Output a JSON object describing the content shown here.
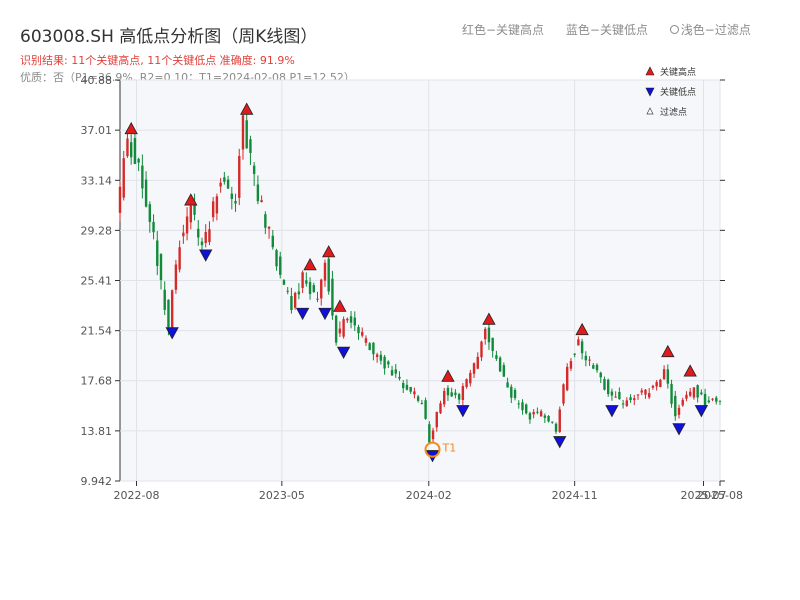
{
  "title": "603008.SH 高低点分析图（周K线图）",
  "result_text": "识别结果: 11个关键高点, 11个关键低点   准确度: 91.9%",
  "quality_text": "优质：否（P1=36.9%, R2=0.10；T1=2024-02-08 P1=12.52）",
  "top_legend": {
    "high": "红色−关键高点",
    "low": "蓝色−关键低点",
    "filtered": "浅色−过滤点"
  },
  "colors": {
    "up": "#d42a2a",
    "down": "#118a3a",
    "high_marker": "#e01b1b",
    "low_marker": "#1010d8",
    "t1_marker": "#f08c1e",
    "plot_bg": "#f5f7fa"
  },
  "chart_data": {
    "type": "candlestick",
    "ylim": [
      9.942,
      40.88
    ],
    "y_ticks": [
      "9.942",
      "13.81",
      "17.68",
      "21.54",
      "25.41",
      "29.28",
      "33.14",
      "37.01",
      "40.88"
    ],
    "x_range": [
      "2022-07-01",
      "2025-08-01"
    ],
    "x_ticks": [
      "2022-08",
      "2023-05",
      "2024-02",
      "2024-11",
      "2025-07",
      "2025-08"
    ],
    "grid": true,
    "legend": {
      "position": "top-right",
      "items": [
        "关键高点",
        "关键低点",
        "过滤点"
      ]
    },
    "price_path": [
      [
        "2022-07-01",
        30.0
      ],
      [
        "2022-07-22",
        36.5
      ],
      [
        "2022-08-19",
        33.0
      ],
      [
        "2022-09-09",
        28.5
      ],
      [
        "2022-10-07",
        22.0
      ],
      [
        "2022-10-28",
        28.5
      ],
      [
        "2022-11-18",
        31.0
      ],
      [
        "2022-12-09",
        28.0
      ],
      [
        "2023-01-13",
        33.0
      ],
      [
        "2023-02-10",
        32.0
      ],
      [
        "2023-02-24",
        37.5
      ],
      [
        "2023-03-17",
        33.0
      ],
      [
        "2023-04-14",
        29.0
      ],
      [
        "2023-05-05",
        25.5
      ],
      [
        "2023-05-26",
        23.5
      ],
      [
        "2023-06-16",
        25.5
      ],
      [
        "2023-07-14",
        24.0
      ],
      [
        "2023-07-28",
        27.0
      ],
      [
        "2023-08-18",
        21.0
      ],
      [
        "2023-09-08",
        22.5
      ],
      [
        "2023-10-06",
        21.0
      ],
      [
        "2023-11-03",
        19.5
      ],
      [
        "2023-12-01",
        18.5
      ],
      [
        "2023-12-29",
        17.0
      ],
      [
        "2024-01-26",
        16.0
      ],
      [
        "2024-02-08",
        13.0
      ],
      [
        "2024-03-08",
        17.0
      ],
      [
        "2024-04-05",
        16.5
      ],
      [
        "2024-05-03",
        19.0
      ],
      [
        "2024-05-24",
        21.5
      ],
      [
        "2024-06-21",
        18.5
      ],
      [
        "2024-07-19",
        16.0
      ],
      [
        "2024-08-16",
        15.0
      ],
      [
        "2024-09-13",
        15.0
      ],
      [
        "2024-10-04",
        14.0
      ],
      [
        "2024-10-25",
        19.0
      ],
      [
        "2024-11-15",
        20.5
      ],
      [
        "2024-12-13",
        18.5
      ],
      [
        "2025-01-10",
        17.0
      ],
      [
        "2025-02-07",
        16.0
      ],
      [
        "2025-03-07",
        16.5
      ],
      [
        "2025-04-04",
        17.0
      ],
      [
        "2025-04-25",
        18.5
      ],
      [
        "2025-05-16",
        15.0
      ],
      [
        "2025-06-06",
        16.5
      ],
      [
        "2025-06-20",
        17.0
      ],
      [
        "2025-07-11",
        16.0
      ],
      [
        "2025-07-25",
        16.5
      ],
      [
        "2025-08-01",
        16.0
      ]
    ],
    "key_highs": [
      [
        "2022-07-22",
        36.5
      ],
      [
        "2022-11-11",
        31.0
      ],
      [
        "2023-02-24",
        38.0
      ],
      [
        "2023-06-23",
        26.0
      ],
      [
        "2023-07-28",
        27.0
      ],
      [
        "2023-08-18",
        22.8
      ],
      [
        "2024-03-08",
        17.4
      ],
      [
        "2024-05-24",
        21.8
      ],
      [
        "2024-11-15",
        21.0
      ],
      [
        "2025-04-25",
        19.3
      ],
      [
        "2025-06-06",
        17.8
      ]
    ],
    "key_lows": [
      [
        "2022-10-07",
        22.0
      ],
      [
        "2022-12-09",
        28.0
      ],
      [
        "2023-06-09",
        23.5
      ],
      [
        "2023-07-21",
        23.5
      ],
      [
        "2023-08-25",
        20.5
      ],
      [
        "2024-02-08",
        12.52
      ],
      [
        "2024-04-05",
        16.0
      ],
      [
        "2024-10-04",
        13.6
      ],
      [
        "2025-01-10",
        16.0
      ],
      [
        "2025-05-16",
        14.6
      ],
      [
        "2025-06-27",
        16.0
      ]
    ],
    "t1": {
      "date": "2024-02-08",
      "price": 12.52,
      "label": "T1"
    }
  }
}
